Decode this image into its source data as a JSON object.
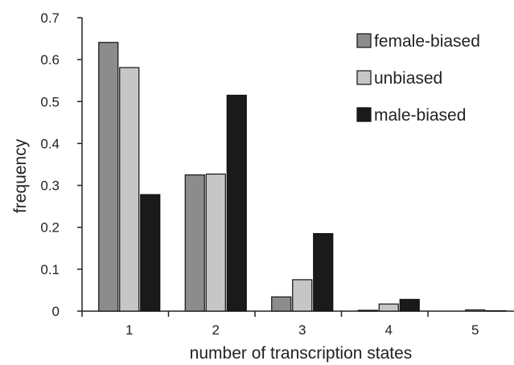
{
  "chart_data": {
    "type": "bar",
    "xlabel": "number of transcription states",
    "ylabel": "frequency",
    "categories": [
      "1",
      "2",
      "3",
      "4",
      "5"
    ],
    "ylim": [
      0,
      0.7
    ],
    "yticks": [
      "0",
      "0.1",
      "0.2",
      "0.3",
      "0.4",
      "0.5",
      "0.6",
      "0.7"
    ],
    "grid": false,
    "legend_position": "top-right",
    "series": [
      {
        "name": "female-biased",
        "color": "#8c8c8c",
        "values": [
          0.641,
          0.325,
          0.034,
          0.002,
          0.0
        ]
      },
      {
        "name": "unbiased",
        "color": "#c6c6c6",
        "values": [
          0.581,
          0.327,
          0.075,
          0.017,
          0.003
        ]
      },
      {
        "name": "male-biased",
        "color": "#1a1a1a",
        "values": [
          0.278,
          0.515,
          0.185,
          0.028,
          0.001
        ]
      }
    ]
  }
}
